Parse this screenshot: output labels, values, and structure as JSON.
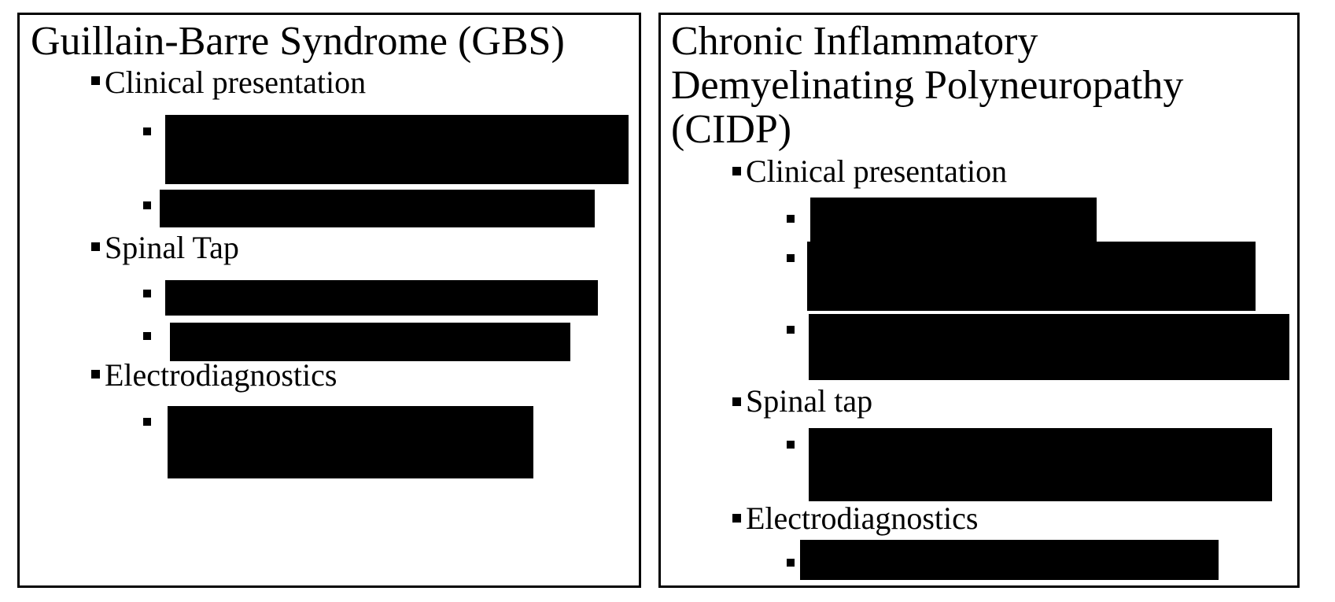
{
  "left_card": {
    "title": "Guillain-Barre Syndrome (GBS)",
    "sections": [
      {
        "heading": "Clinical presentation"
      },
      {
        "heading": "Spinal Tap"
      },
      {
        "heading": "Electrodiagnostics"
      }
    ]
  },
  "right_card": {
    "title_lines": [
      "Chronic Inflammatory",
      "Demyelinating Polyneuropathy",
      "(CIDP)"
    ],
    "sections": [
      {
        "heading": "Clinical presentation"
      },
      {
        "heading": "Spinal tap"
      },
      {
        "heading": "Electrodiagnostics"
      }
    ]
  },
  "colors": {
    "text": "#000000",
    "border": "#000000",
    "redaction": "#000000",
    "background": "#ffffff"
  }
}
